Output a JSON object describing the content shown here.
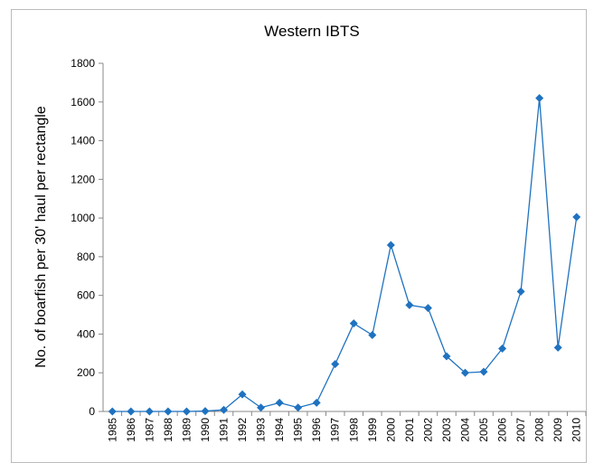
{
  "chart_data": {
    "type": "line",
    "title": "Western IBTS",
    "y_label": "No. of boarfish per 30' haul per rectangle",
    "categories": [
      "1985",
      "1986",
      "1987",
      "1988",
      "1989",
      "1990",
      "1991",
      "1992",
      "1993",
      "1994",
      "1995",
      "1996",
      "1997",
      "1998",
      "1999",
      "2000",
      "2001",
      "2002",
      "2003",
      "2004",
      "2005",
      "2006",
      "2007",
      "2008",
      "2009",
      "2010"
    ],
    "values": [
      0,
      0,
      0,
      0,
      0,
      2,
      8,
      88,
      20,
      45,
      20,
      45,
      245,
      455,
      395,
      860,
      550,
      535,
      285,
      200,
      205,
      325,
      620,
      1620,
      330,
      1005
    ],
    "color": "#1f72c0",
    "ylim": [
      0,
      1800
    ],
    "yticks": [
      0,
      200,
      400,
      600,
      800,
      1000,
      1200,
      1400,
      1600,
      1800
    ],
    "grid": false
  }
}
